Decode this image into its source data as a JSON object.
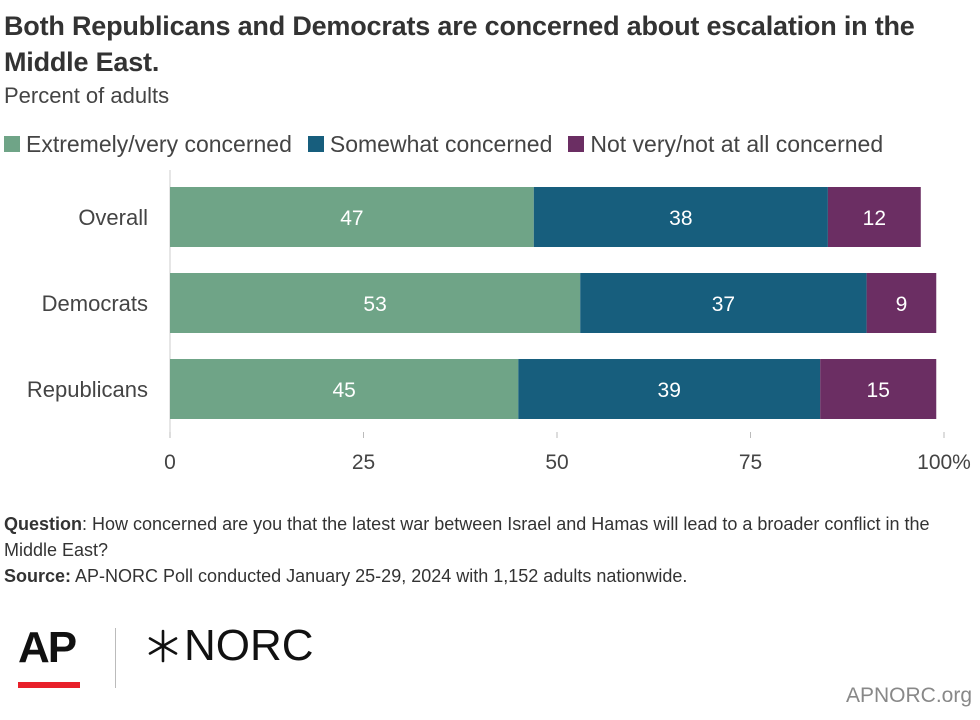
{
  "title": "Both Republicans and Democrats are concerned about escalation in the Middle East.",
  "subtitle": "Percent of adults",
  "legend": [
    {
      "label": "Extremely/very concerned",
      "color": "#6fa487"
    },
    {
      "label": "Somewhat concerned",
      "color": "#175e7d"
    },
    {
      "label": "Not very/not at all concerned",
      "color": "#6b2e63"
    }
  ],
  "chart_data": {
    "type": "bar",
    "orientation": "horizontal",
    "stacked": true,
    "categories": [
      "Overall",
      "Democrats",
      "Republicans"
    ],
    "series": [
      {
        "name": "Extremely/very concerned",
        "values": [
          47,
          53,
          45
        ],
        "color": "#6fa487"
      },
      {
        "name": "Somewhat concerned",
        "values": [
          38,
          37,
          39
        ],
        "color": "#175e7d"
      },
      {
        "name": "Not very/not at all concerned",
        "values": [
          12,
          9,
          15
        ],
        "color": "#6b2e63"
      }
    ],
    "xlim": [
      0,
      100
    ],
    "xticks": [
      "0",
      "25",
      "50",
      "75",
      "100%"
    ],
    "grid": false,
    "legend_position": "top"
  },
  "notes": {
    "question_label": "Question",
    "question_text": ": How concerned are you that the latest war between Israel and Hamas will lead to a broader conflict in the Middle East?",
    "source_label": "Source:",
    "source_text": " AP-NORC Poll conducted January 25-29, 2024 with 1,152 adults nationwide."
  },
  "logos": {
    "ap": "AP",
    "norc": "NORC"
  },
  "site": "APNORC.org"
}
